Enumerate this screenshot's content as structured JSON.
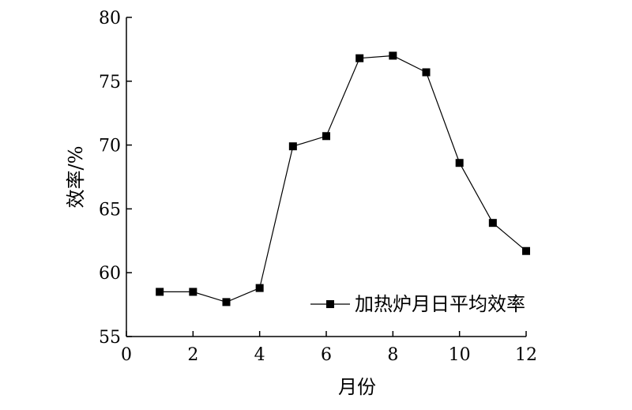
{
  "chart_data": {
    "type": "line",
    "title": "",
    "xlabel": "月份",
    "ylabel": "效率/%",
    "xlim": [
      0,
      12
    ],
    "ylim": [
      55,
      80
    ],
    "xticks": [
      "0",
      "2",
      "4",
      "6",
      "8",
      "10",
      "12"
    ],
    "yticks": [
      "55",
      "60",
      "65",
      "70",
      "75",
      "80"
    ],
    "grid": false,
    "legend": "bottom-right",
    "series": [
      {
        "name": "加热炉月日平均效率",
        "marker": "square",
        "color": "#000000",
        "x": [
          1,
          2,
          3,
          4,
          5,
          6,
          7,
          8,
          9,
          10,
          11,
          12
        ],
        "y": [
          58.5,
          58.5,
          57.7,
          58.8,
          69.9,
          70.7,
          76.8,
          77.0,
          75.7,
          68.6,
          63.9,
          61.7
        ]
      }
    ]
  }
}
